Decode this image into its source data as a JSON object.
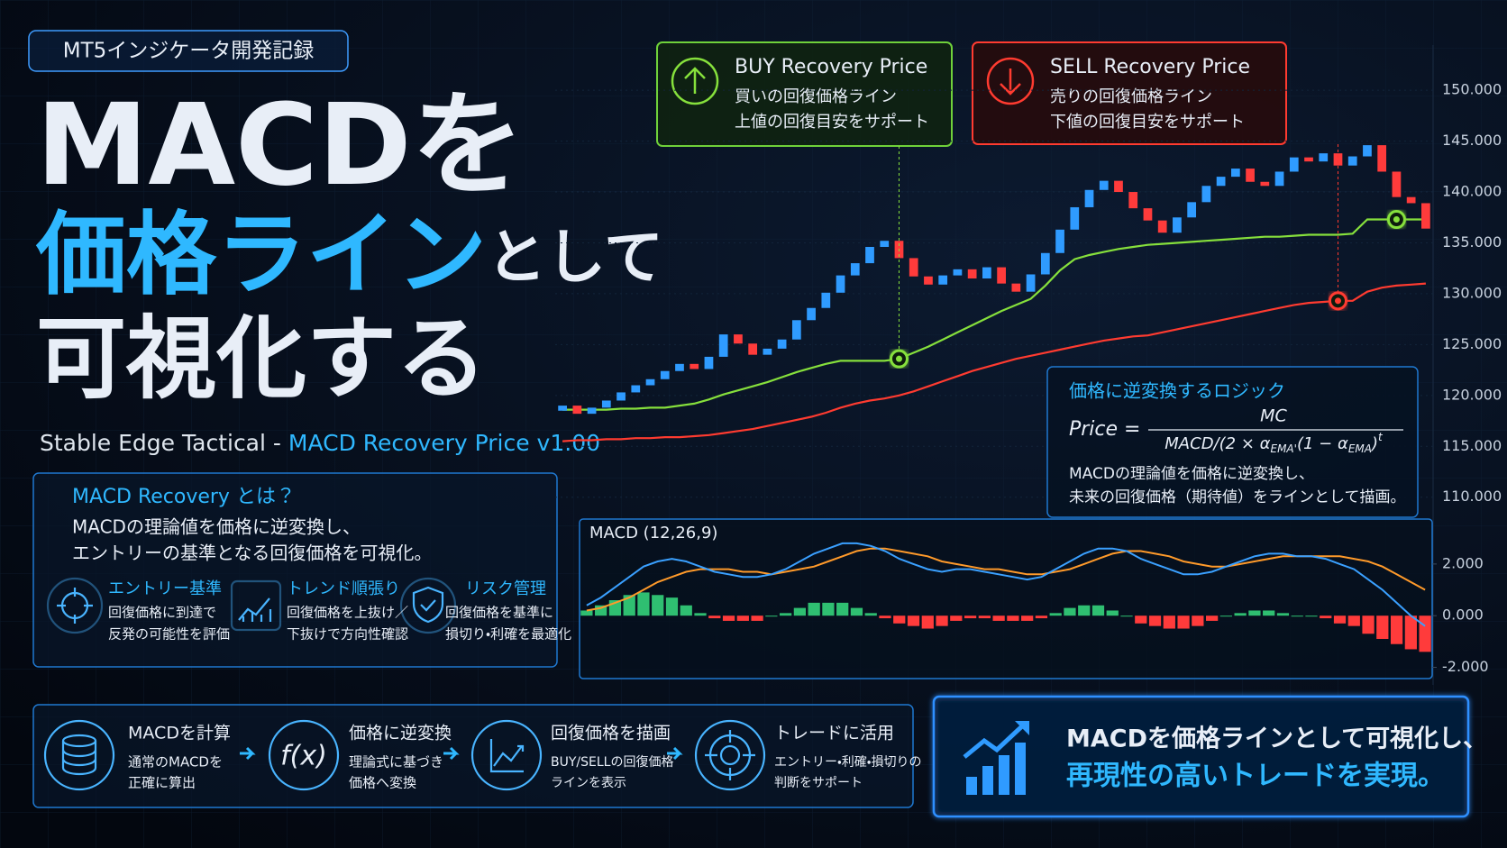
{
  "header": {
    "tag": "MT5インジケータ開発記録",
    "title_line1": "MACDを",
    "title_line2_accent": "価格ライン",
    "title_line2_rest": "として",
    "title_line3": "可視化する",
    "subtitle_plain": "Stable Edge Tactical - ",
    "subtitle_accent": "MACD Recovery Price v1.00"
  },
  "about": {
    "title": "MACD Recovery とは？",
    "lines": [
      "MACDの理論値を価格に逆変換し、",
      "エントリーの基準となる回復価格を可視化。"
    ],
    "features": [
      {
        "title": "エントリー基準",
        "lines": [
          "回復価格に到達で",
          "反発の可能性を評価"
        ]
      },
      {
        "title": "トレンド順張り",
        "lines": [
          "回復価格を上抜け／",
          "下抜けで方向性確認"
        ]
      },
      {
        "title": "リスク管理",
        "lines": [
          "回復価格を基準に",
          "損切り・利確を最適化"
        ]
      }
    ]
  },
  "logic": {
    "title": "価格に逆変換するロジック",
    "lhs": "Price =",
    "numerator": "MC",
    "denominator": [
      "MACD/(2 × α",
      "EMA'",
      "(1 − α",
      "EMA",
      ")",
      "t"
    ],
    "lines": [
      "MACDの理論値を価格に逆変換し、",
      "未来の回復価格（期待値）をラインとして描画。"
    ]
  },
  "flow": {
    "fx_label": "f(x)",
    "steps": [
      {
        "title": "MACDを計算",
        "lines": [
          "通常のMACDを",
          "正確に算出"
        ]
      },
      {
        "title": "価格に逆変換",
        "lines": [
          "理論式に基づき",
          "価格へ変換"
        ]
      },
      {
        "title": "回復価格を描画",
        "lines": [
          "BUY/SELLの回復価格",
          "ラインを表示"
        ]
      },
      {
        "title": "トレードに活用",
        "lines": [
          "エントリー・利確・損切りの",
          "判断をサポート"
        ]
      }
    ]
  },
  "banner": {
    "line1": "MACDを価格ラインとして可視化し、",
    "line2": "再現性の高いトレードを実現。"
  },
  "chart_data": [
    {
      "type": "candlestick",
      "up_color": "#2f9bff",
      "down_color": "#ff3b3b",
      "open": [
        118.5,
        119.0,
        118.2,
        118.8,
        119.5,
        120.3,
        121.0,
        121.6,
        122.4,
        123.1,
        122.6,
        123.8,
        126.0,
        125.1,
        124.0,
        124.6,
        125.5,
        127.4,
        128.6,
        130.1,
        131.8,
        133.0,
        134.6,
        135.2,
        133.5,
        131.7,
        130.9,
        131.8,
        132.4,
        131.5,
        132.6,
        131.0,
        130.2,
        131.9,
        134.0,
        136.3,
        138.5,
        140.2,
        141.1,
        140.0,
        138.4,
        137.2,
        136.0,
        137.5,
        139.0,
        140.6,
        141.5,
        142.3,
        141.0,
        140.6,
        142.0,
        143.4,
        143.0,
        143.8,
        142.6,
        143.5,
        144.6,
        142.0,
        139.5,
        138.9
      ],
      "close": [
        119.0,
        118.2,
        118.8,
        119.5,
        120.3,
        121.0,
        121.6,
        122.4,
        123.1,
        122.6,
        123.8,
        126.0,
        125.1,
        124.0,
        124.6,
        125.5,
        127.4,
        128.6,
        130.1,
        131.8,
        133.0,
        134.6,
        135.2,
        133.5,
        131.7,
        130.9,
        131.8,
        132.4,
        131.5,
        132.6,
        131.0,
        130.2,
        131.9,
        134.0,
        136.3,
        138.5,
        140.2,
        141.1,
        140.0,
        138.4,
        137.2,
        136.0,
        137.5,
        139.0,
        140.6,
        141.5,
        142.3,
        141.0,
        140.6,
        142.0,
        143.4,
        143.0,
        143.8,
        142.6,
        143.5,
        144.6,
        142.0,
        139.5,
        138.9,
        136.4
      ],
      "series": [
        {
          "name": "BUY Recovery Price",
          "color": "#86e03c",
          "description": [
            "買いの回復価格ライン",
            "上値の回復目安をサポート"
          ],
          "values": [
            118.6,
            118.6,
            118.6,
            118.6,
            118.7,
            118.7,
            118.8,
            118.8,
            119.0,
            119.2,
            119.6,
            120.1,
            120.5,
            120.9,
            121.3,
            121.8,
            122.3,
            122.7,
            123.1,
            123.4,
            123.4,
            123.4,
            123.4,
            123.6,
            124.2,
            124.8,
            125.5,
            126.2,
            126.9,
            127.6,
            128.3,
            128.9,
            129.5,
            130.8,
            132.3,
            133.4,
            133.8,
            134.1,
            134.4,
            134.6,
            134.8,
            134.9,
            135.0,
            135.1,
            135.2,
            135.3,
            135.4,
            135.5,
            135.6,
            135.6,
            135.7,
            135.8,
            135.8,
            135.8,
            135.9,
            137.3,
            137.3,
            137.3,
            137.3,
            137.3
          ]
        },
        {
          "name": "SELL Recovery Price",
          "color": "#ff3b30",
          "description": [
            "売りの回復価格ライン",
            "下値の回復目安をサポート"
          ],
          "values": [
            115.5,
            115.6,
            115.6,
            115.7,
            115.7,
            115.8,
            115.8,
            115.9,
            115.9,
            116.0,
            116.1,
            116.3,
            116.5,
            116.7,
            117.0,
            117.3,
            117.6,
            117.9,
            118.3,
            118.8,
            119.2,
            119.5,
            119.7,
            120.0,
            120.4,
            120.9,
            121.4,
            121.9,
            122.4,
            122.8,
            123.2,
            123.6,
            123.9,
            124.2,
            124.5,
            124.8,
            125.1,
            125.4,
            125.6,
            125.8,
            125.9,
            126.2,
            126.5,
            126.8,
            127.1,
            127.4,
            127.7,
            128.0,
            128.3,
            128.6,
            128.9,
            129.1,
            129.2,
            129.3,
            129.3,
            130.2,
            130.6,
            130.8,
            130.9,
            131.0
          ]
        }
      ],
      "ylim": [
        109,
        154
      ],
      "yticks": [
        {
          "value": 110,
          "label": "110.000"
        },
        {
          "value": 115,
          "label": "115.000"
        },
        {
          "value": 120,
          "label": "120.000"
        },
        {
          "value": 125,
          "label": "125.000"
        },
        {
          "value": 130,
          "label": "130.000"
        },
        {
          "value": 135,
          "label": "135.000"
        },
        {
          "value": 140,
          "label": "140.000"
        },
        {
          "value": 145,
          "label": "145.000"
        },
        {
          "value": 150,
          "label": "150.000"
        }
      ],
      "grid": true
    },
    {
      "type": "macd",
      "title": "MACD (12,26,9)",
      "macd_color": "#3aa0ff",
      "signal_color": "#ff9a2a",
      "positive_color": "#2fbf71",
      "negative_color": "#ff3b3b",
      "macd": [
        0.4,
        0.7,
        1.1,
        1.5,
        1.9,
        2.1,
        2.2,
        2.1,
        1.9,
        1.7,
        1.6,
        1.5,
        1.5,
        1.6,
        1.8,
        2.1,
        2.4,
        2.6,
        2.8,
        2.8,
        2.7,
        2.5,
        2.2,
        2.0,
        1.8,
        1.7,
        1.8,
        1.8,
        1.7,
        1.6,
        1.5,
        1.4,
        1.5,
        1.8,
        2.1,
        2.4,
        2.6,
        2.6,
        2.5,
        2.2,
        2.0,
        1.8,
        1.6,
        1.6,
        1.7,
        1.9,
        2.1,
        2.3,
        2.4,
        2.4,
        2.3,
        2.3,
        2.2,
        2.0,
        1.8,
        1.4,
        1.0,
        0.5,
        0.0,
        -0.4
      ],
      "signal": [
        0.2,
        0.3,
        0.5,
        0.7,
        1.0,
        1.3,
        1.5,
        1.7,
        1.8,
        1.8,
        1.8,
        1.7,
        1.7,
        1.6,
        1.7,
        1.8,
        1.9,
        2.1,
        2.3,
        2.5,
        2.6,
        2.6,
        2.5,
        2.4,
        2.3,
        2.1,
        2.0,
        1.9,
        1.8,
        1.8,
        1.7,
        1.6,
        1.6,
        1.7,
        1.8,
        2.0,
        2.2,
        2.4,
        2.5,
        2.5,
        2.4,
        2.3,
        2.1,
        2.0,
        1.9,
        1.9,
        2.0,
        2.1,
        2.2,
        2.3,
        2.3,
        2.3,
        2.3,
        2.3,
        2.2,
        2.1,
        1.9,
        1.6,
        1.3,
        1.0
      ],
      "histogram": [
        0.2,
        0.4,
        0.6,
        0.8,
        0.9,
        0.8,
        0.7,
        0.4,
        0.1,
        -0.1,
        -0.2,
        -0.2,
        -0.2,
        0.0,
        0.1,
        0.3,
        0.5,
        0.5,
        0.5,
        0.3,
        0.1,
        -0.1,
        -0.3,
        -0.4,
        -0.5,
        -0.4,
        -0.2,
        -0.1,
        -0.1,
        -0.2,
        -0.2,
        -0.2,
        -0.1,
        0.1,
        0.3,
        0.4,
        0.4,
        0.2,
        0.0,
        -0.3,
        -0.4,
        -0.5,
        -0.5,
        -0.4,
        -0.2,
        0.0,
        0.1,
        0.2,
        0.2,
        0.1,
        0.0,
        0.0,
        -0.1,
        -0.3,
        -0.4,
        -0.7,
        -0.9,
        -1.1,
        -1.3,
        -1.4
      ],
      "ylim": [
        -2.4,
        3.6
      ],
      "yticks": [
        {
          "value": -2,
          "label": "-2.000"
        },
        {
          "value": 0,
          "label": "0.000"
        },
        {
          "value": 2,
          "label": "2.000"
        }
      ]
    }
  ]
}
